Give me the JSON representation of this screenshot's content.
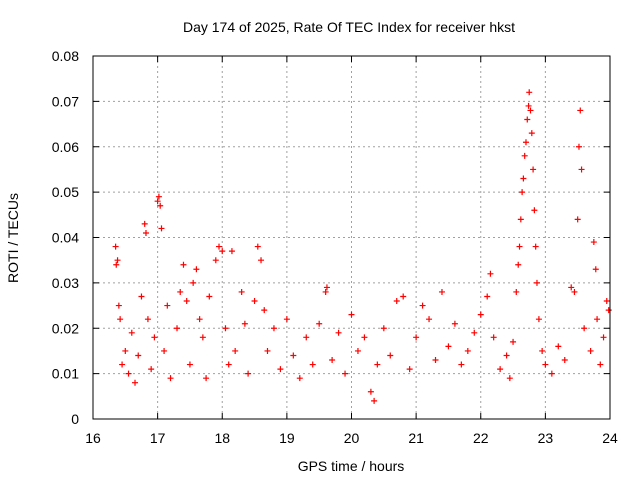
{
  "chart_data": {
    "type": "scatter",
    "title": "Day 174 of 2025, Rate Of TEC Index for receiver hkst",
    "xlabel": "GPS time / hours",
    "ylabel": "ROTI / TECUs",
    "xlim": [
      16,
      24
    ],
    "ylim": [
      0,
      0.08
    ],
    "x_ticks": [
      "16",
      "17",
      "18",
      "19",
      "20",
      "21",
      "22",
      "23",
      "24"
    ],
    "y_ticks": [
      "0",
      "0.01",
      "0.02",
      "0.03",
      "0.04",
      "0.05",
      "0.06",
      "0.07",
      "0.08"
    ],
    "grid": true,
    "marker": "+",
    "color": "#ff0000",
    "series": [
      {
        "name": "ROTI",
        "points": [
          [
            16.35,
            0.038
          ],
          [
            16.36,
            0.034
          ],
          [
            16.38,
            0.035
          ],
          [
            16.4,
            0.025
          ],
          [
            16.42,
            0.022
          ],
          [
            16.45,
            0.012
          ],
          [
            16.5,
            0.015
          ],
          [
            16.55,
            0.01
          ],
          [
            16.6,
            0.019
          ],
          [
            16.65,
            0.008
          ],
          [
            16.7,
            0.014
          ],
          [
            16.75,
            0.027
          ],
          [
            16.8,
            0.043
          ],
          [
            16.82,
            0.041
          ],
          [
            16.85,
            0.022
          ],
          [
            16.9,
            0.011
          ],
          [
            16.95,
            0.018
          ],
          [
            17.0,
            0.048
          ],
          [
            17.02,
            0.049
          ],
          [
            17.04,
            0.047
          ],
          [
            17.06,
            0.042
          ],
          [
            17.1,
            0.015
          ],
          [
            17.15,
            0.025
          ],
          [
            17.2,
            0.009
          ],
          [
            17.3,
            0.02
          ],
          [
            17.35,
            0.028
          ],
          [
            17.4,
            0.034
          ],
          [
            17.45,
            0.026
          ],
          [
            17.5,
            0.012
          ],
          [
            17.55,
            0.03
          ],
          [
            17.6,
            0.033
          ],
          [
            17.65,
            0.022
          ],
          [
            17.7,
            0.018
          ],
          [
            17.75,
            0.009
          ],
          [
            17.8,
            0.027
          ],
          [
            17.9,
            0.035
          ],
          [
            17.95,
            0.038
          ],
          [
            18.0,
            0.037
          ],
          [
            18.05,
            0.02
          ],
          [
            18.1,
            0.012
          ],
          [
            18.15,
            0.037
          ],
          [
            18.2,
            0.015
          ],
          [
            18.3,
            0.028
          ],
          [
            18.35,
            0.021
          ],
          [
            18.4,
            0.01
          ],
          [
            18.5,
            0.026
          ],
          [
            18.55,
            0.038
          ],
          [
            18.6,
            0.035
          ],
          [
            18.65,
            0.024
          ],
          [
            18.7,
            0.015
          ],
          [
            18.8,
            0.02
          ],
          [
            18.9,
            0.011
          ],
          [
            19.0,
            0.022
          ],
          [
            19.1,
            0.014
          ],
          [
            19.2,
            0.009
          ],
          [
            19.3,
            0.018
          ],
          [
            19.4,
            0.012
          ],
          [
            19.5,
            0.021
          ],
          [
            19.6,
            0.028
          ],
          [
            19.62,
            0.029
          ],
          [
            19.7,
            0.013
          ],
          [
            19.8,
            0.019
          ],
          [
            19.9,
            0.01
          ],
          [
            20.0,
            0.023
          ],
          [
            20.1,
            0.015
          ],
          [
            20.2,
            0.018
          ],
          [
            20.3,
            0.006
          ],
          [
            20.35,
            0.004
          ],
          [
            20.4,
            0.012
          ],
          [
            20.5,
            0.02
          ],
          [
            20.6,
            0.014
          ],
          [
            20.7,
            0.026
          ],
          [
            20.8,
            0.027
          ],
          [
            20.9,
            0.011
          ],
          [
            21.0,
            0.018
          ],
          [
            21.1,
            0.025
          ],
          [
            21.2,
            0.022
          ],
          [
            21.3,
            0.013
          ],
          [
            21.4,
            0.028
          ],
          [
            21.5,
            0.016
          ],
          [
            21.6,
            0.021
          ],
          [
            21.7,
            0.012
          ],
          [
            21.8,
            0.015
          ],
          [
            21.9,
            0.019
          ],
          [
            22.0,
            0.023
          ],
          [
            22.1,
            0.027
          ],
          [
            22.15,
            0.032
          ],
          [
            22.2,
            0.018
          ],
          [
            22.3,
            0.011
          ],
          [
            22.4,
            0.014
          ],
          [
            22.45,
            0.009
          ],
          [
            22.5,
            0.017
          ],
          [
            22.55,
            0.028
          ],
          [
            22.58,
            0.034
          ],
          [
            22.6,
            0.038
          ],
          [
            22.62,
            0.044
          ],
          [
            22.64,
            0.05
          ],
          [
            22.66,
            0.053
          ],
          [
            22.68,
            0.058
          ],
          [
            22.7,
            0.061
          ],
          [
            22.72,
            0.066
          ],
          [
            22.74,
            0.069
          ],
          [
            22.75,
            0.072
          ],
          [
            22.77,
            0.068
          ],
          [
            22.79,
            0.063
          ],
          [
            22.81,
            0.055
          ],
          [
            22.83,
            0.046
          ],
          [
            22.85,
            0.038
          ],
          [
            22.87,
            0.03
          ],
          [
            22.9,
            0.022
          ],
          [
            22.95,
            0.015
          ],
          [
            23.0,
            0.012
          ],
          [
            23.1,
            0.01
          ],
          [
            23.2,
            0.016
          ],
          [
            23.3,
            0.013
          ],
          [
            23.4,
            0.029
          ],
          [
            23.45,
            0.028
          ],
          [
            23.5,
            0.044
          ],
          [
            23.52,
            0.06
          ],
          [
            23.54,
            0.068
          ],
          [
            23.56,
            0.055
          ],
          [
            23.6,
            0.02
          ],
          [
            23.7,
            0.015
          ],
          [
            23.75,
            0.039
          ],
          [
            23.78,
            0.033
          ],
          [
            23.8,
            0.022
          ],
          [
            23.85,
            0.012
          ],
          [
            23.9,
            0.018
          ],
          [
            23.95,
            0.026
          ],
          [
            23.98,
            0.024
          ]
        ]
      }
    ]
  }
}
